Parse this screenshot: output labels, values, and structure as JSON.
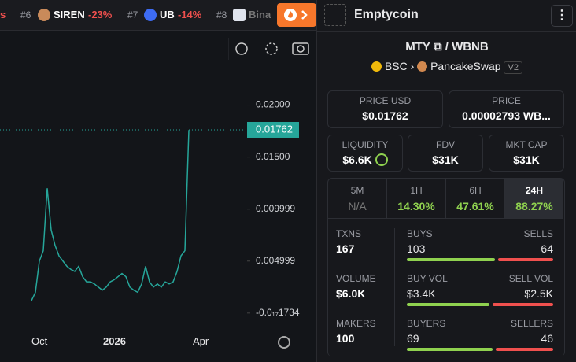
{
  "ticker": [
    {
      "rank": "#6",
      "name": "SIREN",
      "change": "-23%"
    },
    {
      "rank": "#7",
      "name": "UB",
      "change": "-14%"
    },
    {
      "rank": "#8",
      "name": "Bina"
    }
  ],
  "header": {
    "title": "Emptycoin"
  },
  "pair": {
    "base": "MTY",
    "separator": "/",
    "quote": "WBNB",
    "chain": "BSC",
    "dex": "PancakeSwap",
    "version": "V2"
  },
  "stats": {
    "price_usd": {
      "label": "PRICE USD",
      "value": "$0.01762"
    },
    "price": {
      "label": "PRICE",
      "value": "0.00002793 WB..."
    },
    "liquidity": {
      "label": "LIQUIDITY",
      "value": "$6.6K"
    },
    "fdv": {
      "label": "FDV",
      "value": "$31K"
    },
    "mkt_cap": {
      "label": "MKT CAP",
      "value": "$31K"
    }
  },
  "tabs": [
    {
      "label": "5M",
      "value": "N/A"
    },
    {
      "label": "1H",
      "value": "14.30%"
    },
    {
      "label": "6H",
      "value": "47.61%"
    },
    {
      "label": "24H",
      "value": "88.27%"
    }
  ],
  "txns": {
    "label": "TXNS",
    "value": 167
  },
  "buys": {
    "label": "BUYS",
    "value": 103
  },
  "sells": {
    "label": "SELLS",
    "value": 64
  },
  "volume": {
    "label": "VOLUME",
    "value": "$6.0K"
  },
  "buy_vol": {
    "label": "BUY VOL",
    "value": "$3.4K"
  },
  "sell_vol": {
    "label": "SELL VOL",
    "value": "$2.5K"
  },
  "makers": {
    "label": "MAKERS",
    "value": 100
  },
  "buyers": {
    "label": "BUYERS",
    "value": 69
  },
  "sellers": {
    "label": "SELLERS",
    "value": 46
  },
  "chart_data": {
    "type": "line",
    "color": "#26a69a",
    "values": [
      0.0012,
      0.002,
      0.005,
      0.006,
      0.012,
      0.008,
      0.0065,
      0.0055,
      0.005,
      0.0045,
      0.0042,
      0.004,
      0.0045,
      0.0035,
      0.003,
      0.003,
      0.0028,
      0.0025,
      0.0022,
      0.0025,
      0.003,
      0.0032,
      0.0035,
      0.0038,
      0.0035,
      0.0025,
      0.0022,
      0.002,
      0.0028,
      0.0045,
      0.003,
      0.0025,
      0.0028,
      0.0025,
      0.003,
      0.0028,
      0.003,
      0.004,
      0.0055,
      0.006,
      0.0176
    ],
    "ylim": [
      -0.0013,
      0.0239
    ],
    "yticks": [
      {
        "value": 0.02,
        "label": "0.02000"
      },
      {
        "value": 0.015,
        "label": "0.01500"
      },
      0.009999,
      0.004999,
      {
        "value": -1.734e-18,
        "label": "-0.0₁₇1734"
      }
    ],
    "last_price": 0.01762,
    "x_axis_labels": [
      "Oct",
      "2026",
      "Apr"
    ]
  }
}
